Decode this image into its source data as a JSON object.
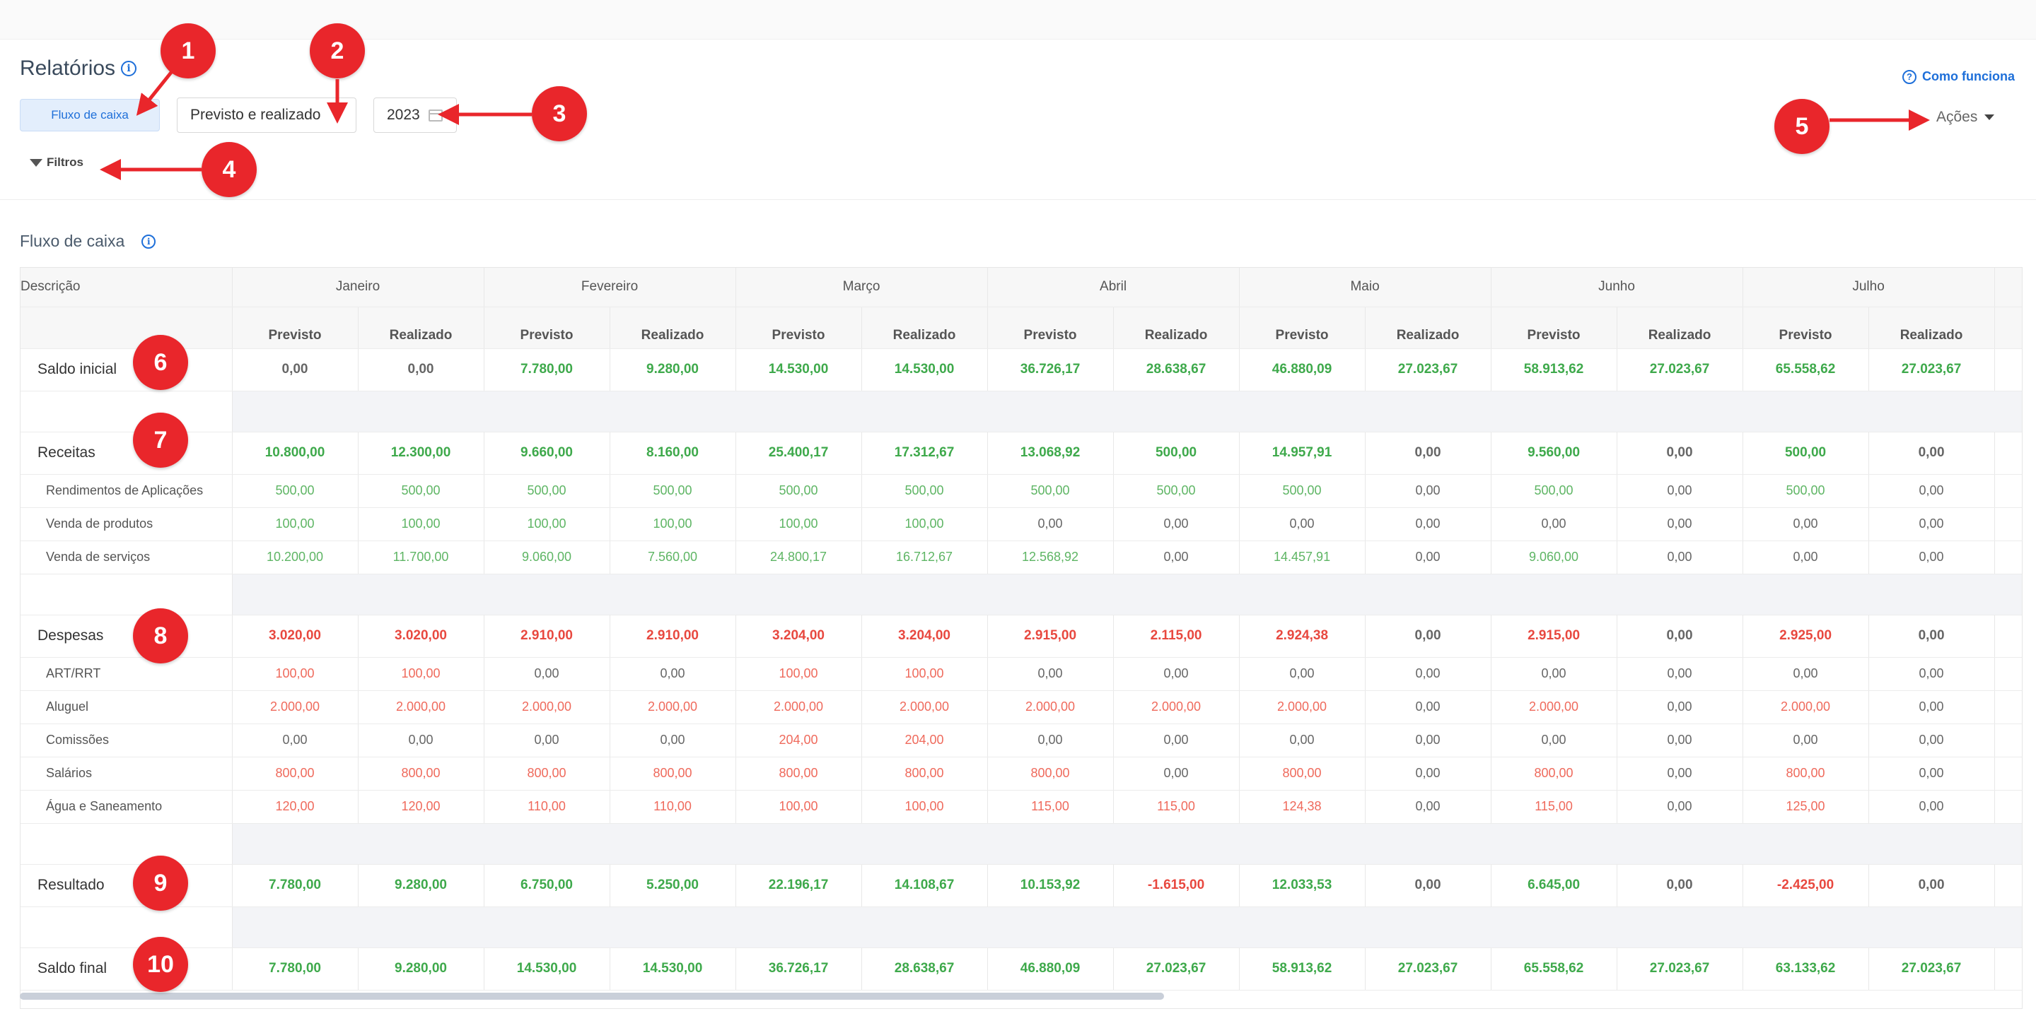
{
  "header": {
    "title": "Relatórios",
    "help_link": "Como funciona",
    "report_type": "Fluxo de caixa",
    "view_mode": "Previsto e realizado",
    "year": "2023",
    "filters_label": "Filtros",
    "actions_label": "Ações"
  },
  "section": {
    "title": "Fluxo de caixa"
  },
  "table": {
    "desc_header": "Descrição",
    "months": [
      "Janeiro",
      "Fevereiro",
      "Março",
      "Abril",
      "Maio",
      "Junho",
      "Julho"
    ],
    "sub_headers": {
      "previsto": "Previsto",
      "realizado": "Realizado"
    },
    "saldo_inicial": {
      "label": "Saldo inicial",
      "values": [
        "0,00",
        "0,00",
        "7.780,00",
        "9.280,00",
        "14.530,00",
        "14.530,00",
        "36.726,17",
        "28.638,67",
        "46.880,09",
        "27.023,67",
        "58.913,62",
        "27.023,67",
        "65.558,62",
        "27.023,67"
      ]
    },
    "receitas": {
      "label": "Receitas",
      "values": [
        "10.800,00",
        "12.300,00",
        "9.660,00",
        "8.160,00",
        "25.400,17",
        "17.312,67",
        "13.068,92",
        "500,00",
        "14.957,91",
        "0,00",
        "9.560,00",
        "0,00",
        "500,00",
        "0,00"
      ]
    },
    "receitas_items": [
      {
        "label": "Rendimentos de Aplicações",
        "values": [
          "500,00",
          "500,00",
          "500,00",
          "500,00",
          "500,00",
          "500,00",
          "500,00",
          "500,00",
          "500,00",
          "0,00",
          "500,00",
          "0,00",
          "500,00",
          "0,00"
        ]
      },
      {
        "label": "Venda de produtos",
        "values": [
          "100,00",
          "100,00",
          "100,00",
          "100,00",
          "100,00",
          "100,00",
          "0,00",
          "0,00",
          "0,00",
          "0,00",
          "0,00",
          "0,00",
          "0,00",
          "0,00"
        ]
      },
      {
        "label": "Venda de serviços",
        "values": [
          "10.200,00",
          "11.700,00",
          "9.060,00",
          "7.560,00",
          "24.800,17",
          "16.712,67",
          "12.568,92",
          "0,00",
          "14.457,91",
          "0,00",
          "9.060,00",
          "0,00",
          "0,00",
          "0,00"
        ]
      }
    ],
    "despesas": {
      "label": "Despesas",
      "values": [
        "3.020,00",
        "3.020,00",
        "2.910,00",
        "2.910,00",
        "3.204,00",
        "3.204,00",
        "2.915,00",
        "2.115,00",
        "2.924,38",
        "0,00",
        "2.915,00",
        "0,00",
        "2.925,00",
        "0,00"
      ]
    },
    "despesas_items": [
      {
        "label": "ART/RRT",
        "values": [
          "100,00",
          "100,00",
          "0,00",
          "0,00",
          "100,00",
          "100,00",
          "0,00",
          "0,00",
          "0,00",
          "0,00",
          "0,00",
          "0,00",
          "0,00",
          "0,00"
        ]
      },
      {
        "label": "Aluguel",
        "values": [
          "2.000,00",
          "2.000,00",
          "2.000,00",
          "2.000,00",
          "2.000,00",
          "2.000,00",
          "2.000,00",
          "2.000,00",
          "2.000,00",
          "0,00",
          "2.000,00",
          "0,00",
          "2.000,00",
          "0,00"
        ]
      },
      {
        "label": "Comissões",
        "values": [
          "0,00",
          "0,00",
          "0,00",
          "0,00",
          "204,00",
          "204,00",
          "0,00",
          "0,00",
          "0,00",
          "0,00",
          "0,00",
          "0,00",
          "0,00",
          "0,00"
        ]
      },
      {
        "label": "Salários",
        "values": [
          "800,00",
          "800,00",
          "800,00",
          "800,00",
          "800,00",
          "800,00",
          "800,00",
          "0,00",
          "800,00",
          "0,00",
          "800,00",
          "0,00",
          "800,00",
          "0,00"
        ]
      },
      {
        "label": "Água e Saneamento",
        "values": [
          "120,00",
          "120,00",
          "110,00",
          "110,00",
          "100,00",
          "100,00",
          "115,00",
          "115,00",
          "124,38",
          "0,00",
          "115,00",
          "0,00",
          "125,00",
          "0,00"
        ]
      }
    ],
    "resultado": {
      "label": "Resultado",
      "values": [
        "7.780,00",
        "9.280,00",
        "6.750,00",
        "5.250,00",
        "22.196,17",
        "14.108,67",
        "10.153,92",
        "-1.615,00",
        "12.033,53",
        "0,00",
        "6.645,00",
        "0,00",
        "-2.425,00",
        "0,00"
      ]
    },
    "saldo_final": {
      "label": "Saldo final",
      "values": [
        "7.780,00",
        "9.280,00",
        "14.530,00",
        "14.530,00",
        "36.726,17",
        "28.638,67",
        "46.880,09",
        "27.023,67",
        "58.913,62",
        "27.023,67",
        "65.558,62",
        "27.023,67",
        "63.133,62",
        "27.023,67"
      ]
    }
  },
  "annotations": [
    "1",
    "2",
    "3",
    "4",
    "5",
    "6",
    "7",
    "8",
    "9",
    "10"
  ],
  "colors": {
    "positive": "#3ea94b",
    "negative": "#e8483f",
    "accent": "#1e6fd9",
    "annotation": "#e9262b"
  }
}
